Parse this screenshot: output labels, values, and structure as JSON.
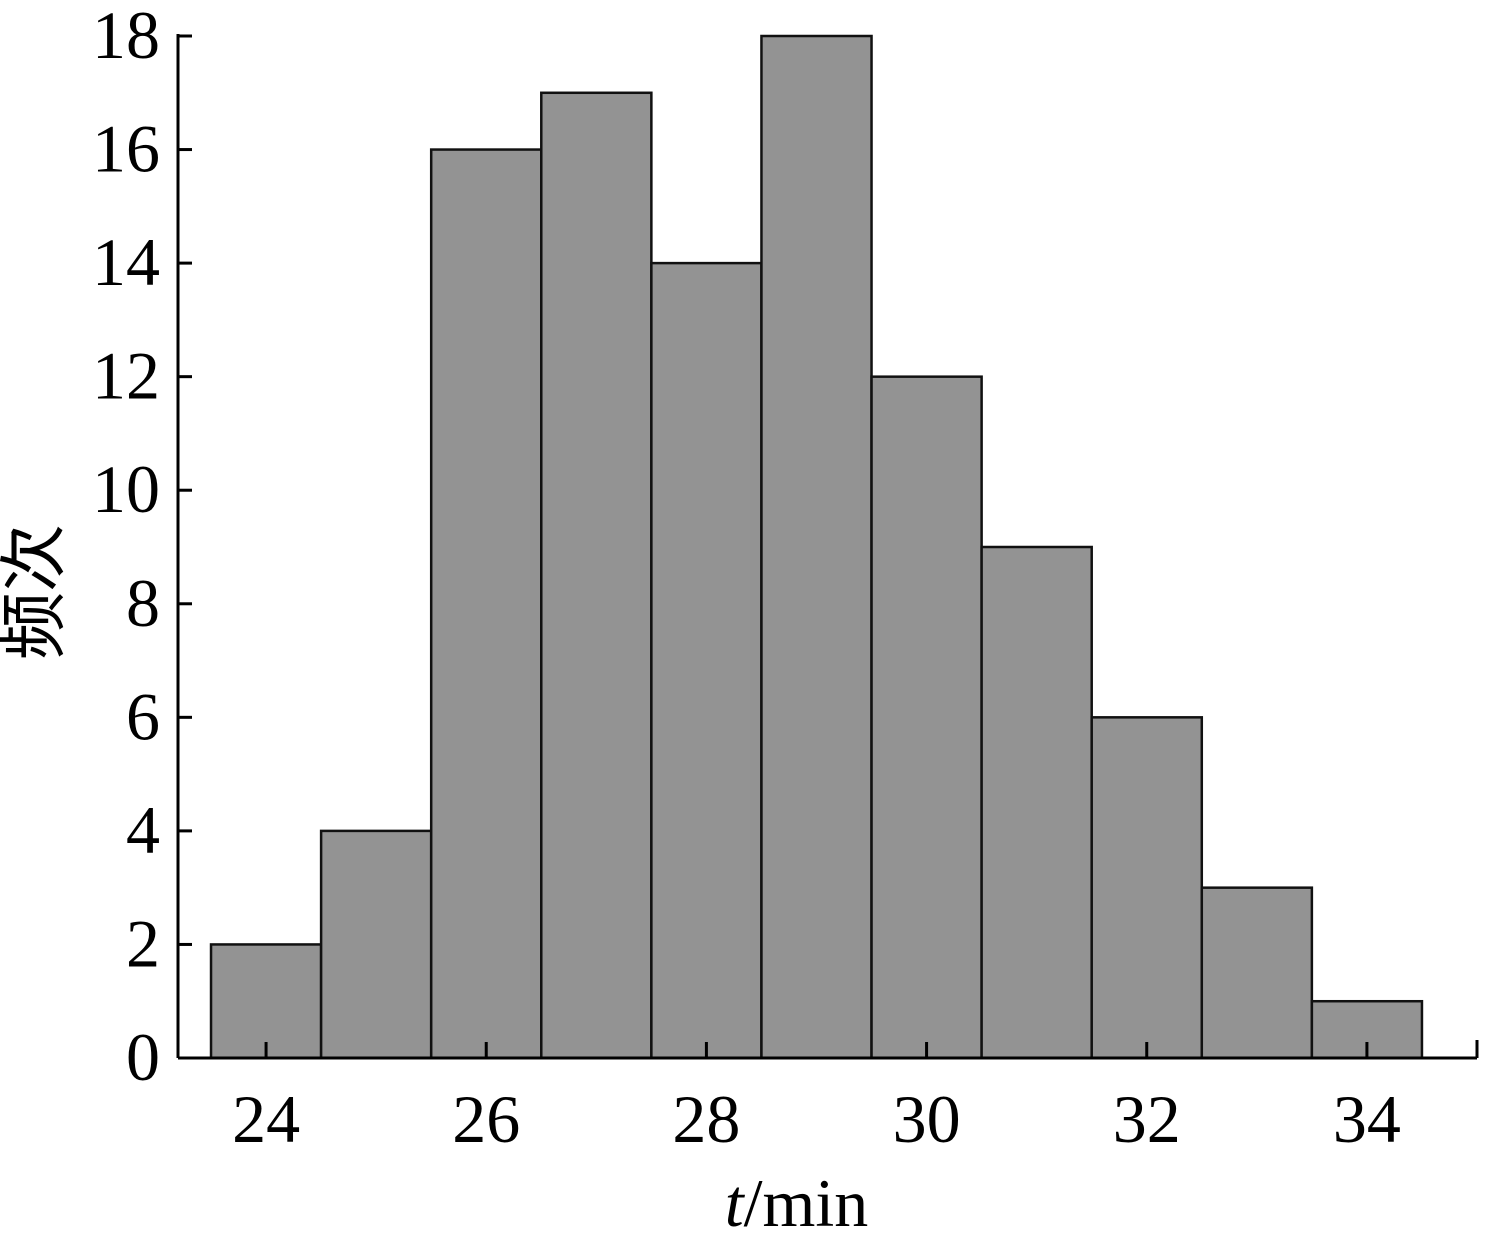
{
  "chart_data": {
    "type": "bar",
    "title": "",
    "xlabel_var": "t",
    "xlabel_unit": "/min",
    "ylabel": "频次",
    "categories": [
      24,
      25,
      26,
      27,
      28,
      29,
      30,
      31,
      32,
      33,
      34
    ],
    "values": [
      2,
      4,
      16,
      17,
      14,
      18,
      12,
      9,
      6,
      3,
      1
    ],
    "xlim": [
      23.2,
      35.0
    ],
    "ylim": [
      0,
      18
    ],
    "xticks": [
      24,
      26,
      28,
      30,
      32,
      34
    ],
    "yticks": [
      0,
      2,
      4,
      6,
      8,
      10,
      12,
      14,
      16,
      18
    ],
    "grid": false,
    "bar_color": "#939393",
    "edge_color": "#111111"
  }
}
